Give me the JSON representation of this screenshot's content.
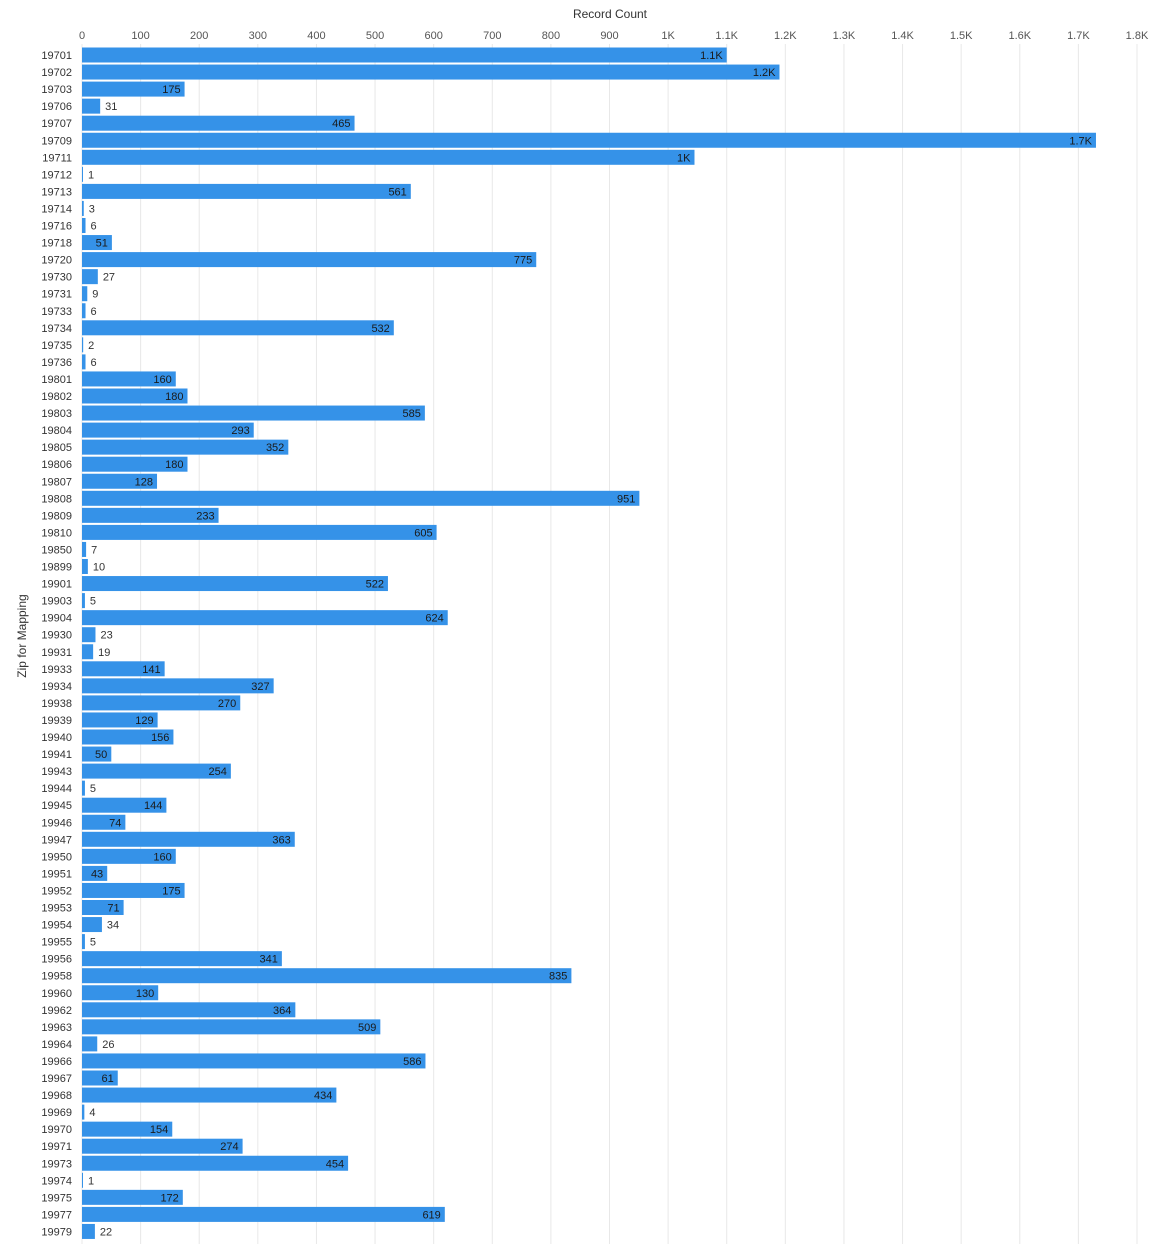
{
  "chart_data": {
    "type": "bar",
    "orientation": "horizontal",
    "xlabel": "Record Count",
    "ylabel": "Zip for Mapping",
    "xlim": [
      0,
      1800
    ],
    "x_ticks": [
      0,
      100,
      200,
      300,
      400,
      500,
      600,
      700,
      800,
      900,
      1000,
      1100,
      1200,
      1300,
      1400,
      1500,
      1600,
      1700,
      1800
    ],
    "x_tick_labels": [
      "0",
      "100",
      "200",
      "300",
      "400",
      "500",
      "600",
      "700",
      "800",
      "900",
      "1K",
      "1.1K",
      "1.2K",
      "1.3K",
      "1.4K",
      "1.5K",
      "1.6K",
      "1.7K",
      "1.8K"
    ],
    "grid": true,
    "bar_color": "#3592e8",
    "categories": [
      "19701",
      "19702",
      "19703",
      "19706",
      "19707",
      "19709",
      "19711",
      "19712",
      "19713",
      "19714",
      "19716",
      "19718",
      "19720",
      "19730",
      "19731",
      "19733",
      "19734",
      "19735",
      "19736",
      "19801",
      "19802",
      "19803",
      "19804",
      "19805",
      "19806",
      "19807",
      "19808",
      "19809",
      "19810",
      "19850",
      "19899",
      "19901",
      "19903",
      "19904",
      "19930",
      "19931",
      "19933",
      "19934",
      "19938",
      "19939",
      "19940",
      "19941",
      "19943",
      "19944",
      "19945",
      "19946",
      "19947",
      "19950",
      "19951",
      "19952",
      "19953",
      "19954",
      "19955",
      "19956",
      "19958",
      "19960",
      "19962",
      "19963",
      "19964",
      "19966",
      "19967",
      "19968",
      "19969",
      "19970",
      "19971",
      "19973",
      "19974",
      "19975",
      "19977",
      "19979"
    ],
    "values": [
      1100,
      1190,
      175,
      31,
      465,
      1730,
      1045,
      1,
      561,
      3,
      6,
      51,
      775,
      27,
      9,
      6,
      532,
      2,
      6,
      160,
      180,
      585,
      293,
      352,
      180,
      128,
      951,
      233,
      605,
      7,
      10,
      522,
      5,
      624,
      23,
      19,
      141,
      327,
      270,
      129,
      156,
      50,
      254,
      5,
      144,
      74,
      363,
      160,
      43,
      175,
      71,
      34,
      5,
      341,
      835,
      130,
      364,
      509,
      26,
      586,
      61,
      434,
      4,
      154,
      274,
      454,
      1,
      172,
      619,
      22
    ],
    "data_labels": [
      "1.1K",
      "1.2K",
      "175",
      "31",
      "465",
      "1.7K",
      "1K",
      "1",
      "561",
      "3",
      "6",
      "51",
      "775",
      "27",
      "9",
      "6",
      "532",
      "2",
      "6",
      "160",
      "180",
      "585",
      "293",
      "352",
      "180",
      "128",
      "951",
      "233",
      "605",
      "7",
      "10",
      "522",
      "5",
      "624",
      "23",
      "19",
      "141",
      "327",
      "270",
      "129",
      "156",
      "50",
      "254",
      "5",
      "144",
      "74",
      "363",
      "160",
      "43",
      "175",
      "71",
      "34",
      "5",
      "341",
      "835",
      "130",
      "364",
      "509",
      "26",
      "586",
      "61",
      "434",
      "4",
      "154",
      "274",
      "454",
      "1",
      "172",
      "619",
      "22"
    ]
  }
}
